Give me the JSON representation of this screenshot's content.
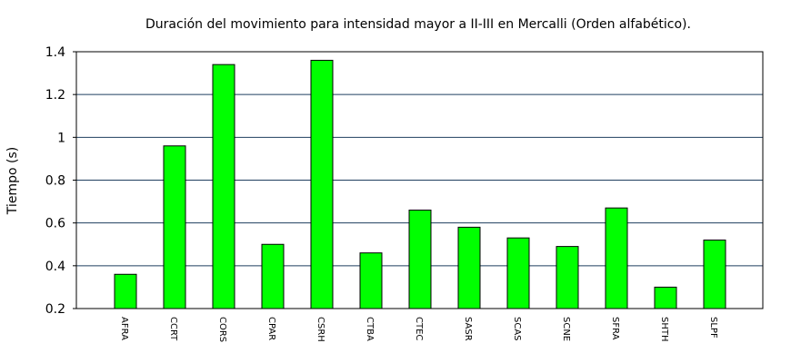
{
  "chart_data": {
    "type": "bar",
    "title": "Duración del movimiento para intensidad mayor a II-III en Mercalli (Orden alfabético).",
    "xlabel": "",
    "ylabel": "Tiempo (s)",
    "categories": [
      "AFRA",
      "CCRT",
      "CORS",
      "CPAR",
      "CSRH",
      "CTBA",
      "CTEC",
      "SASR",
      "SCAS",
      "SCNE",
      "SFRA",
      "SHTH",
      "SLPF"
    ],
    "values": [
      0.36,
      0.96,
      1.34,
      0.5,
      1.36,
      0.46,
      0.66,
      0.58,
      0.53,
      0.49,
      0.67,
      0.3,
      0.52
    ],
    "ylim": [
      0.2,
      1.4
    ],
    "yticks": [
      "0.2",
      "0.4",
      "0.6",
      "0.8",
      "1",
      "1.2",
      "1.4"
    ],
    "grid": true,
    "bar_color": "#00ff00",
    "grid_color": "#1f3f5f"
  }
}
